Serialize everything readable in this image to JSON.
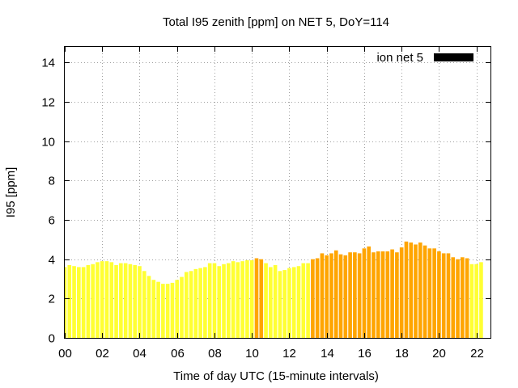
{
  "chart_data": {
    "type": "bar",
    "title": "Total I95 zenith [ppm] on NET 5, DoY=114",
    "xlabel": "Time of day UTC (15-minute intervals)",
    "ylabel": "I95 [ppm]",
    "xlim": [
      0,
      22.75
    ],
    "ylim": [
      0,
      14.8
    ],
    "x_ticks": [
      "00",
      "02",
      "04",
      "06",
      "08",
      "10",
      "12",
      "14",
      "16",
      "18",
      "20",
      "22"
    ],
    "y_ticks": [
      "0",
      "2",
      "4",
      "6",
      "8",
      "10",
      "12",
      "14"
    ],
    "grid": true,
    "legend_position": "top-right",
    "series": [
      {
        "name": "ion net 5",
        "legend_color": "#000000",
        "x_start": 0,
        "x_step": 0.25,
        "values": [
          3.6,
          3.7,
          3.65,
          3.6,
          3.6,
          3.7,
          3.75,
          3.85,
          3.9,
          3.9,
          3.85,
          3.7,
          3.8,
          3.8,
          3.75,
          3.7,
          3.65,
          3.4,
          3.15,
          2.95,
          2.85,
          2.75,
          2.75,
          2.8,
          2.95,
          3.1,
          3.35,
          3.4,
          3.5,
          3.55,
          3.6,
          3.8,
          3.8,
          3.65,
          3.75,
          3.8,
          3.9,
          3.85,
          3.9,
          3.95,
          3.95,
          4.05,
          4.0,
          3.8,
          3.6,
          3.7,
          3.4,
          3.45,
          3.55,
          3.6,
          3.65,
          3.8,
          3.8,
          4.0,
          4.05,
          4.3,
          4.2,
          4.3,
          4.45,
          4.25,
          4.2,
          4.35,
          4.35,
          4.3,
          4.55,
          4.65,
          4.35,
          4.4,
          4.4,
          4.4,
          4.5,
          4.35,
          4.6,
          4.9,
          4.85,
          4.75,
          4.85,
          4.7,
          4.55,
          4.55,
          4.4,
          4.3,
          4.3,
          4.1,
          4.0,
          4.1,
          4.05,
          3.75,
          3.75,
          3.85
        ],
        "colors": [
          "#ffff33",
          "#ffff33",
          "#ffff33",
          "#ffff33",
          "#ffff33",
          "#ffff33",
          "#ffff33",
          "#ffff33",
          "#ffff33",
          "#ffff33",
          "#ffff33",
          "#ffff33",
          "#ffff33",
          "#ffff33",
          "#ffff33",
          "#ffff33",
          "#ffff33",
          "#ffff33",
          "#ffff33",
          "#ffff33",
          "#ffff33",
          "#ffff33",
          "#ffff33",
          "#ffff33",
          "#ffff33",
          "#ffff33",
          "#ffff33",
          "#ffff33",
          "#ffff33",
          "#ffff33",
          "#ffff33",
          "#ffff33",
          "#ffff33",
          "#ffff33",
          "#ffff33",
          "#ffff33",
          "#ffff33",
          "#ffff33",
          "#ffff33",
          "#ffff33",
          "#ffff33",
          "#ffa500",
          "#ffa500",
          "#ffff33",
          "#ffff33",
          "#ffff33",
          "#ffff33",
          "#ffff33",
          "#ffff33",
          "#ffff33",
          "#ffff33",
          "#ffff33",
          "#ffff33",
          "#ffa500",
          "#ffa500",
          "#ffa500",
          "#ffa500",
          "#ffa500",
          "#ffa500",
          "#ffa500",
          "#ffa500",
          "#ffa500",
          "#ffa500",
          "#ffa500",
          "#ffa500",
          "#ffa500",
          "#ffa500",
          "#ffa500",
          "#ffa500",
          "#ffa500",
          "#ffa500",
          "#ffa500",
          "#ffa500",
          "#ffa500",
          "#ffa500",
          "#ffa500",
          "#ffa500",
          "#ffa500",
          "#ffa500",
          "#ffa500",
          "#ffa500",
          "#ffa500",
          "#ffa500",
          "#ffa500",
          "#ffa500",
          "#ffa500",
          "#ffa500",
          "#ffff33",
          "#ffff33",
          "#ffff33"
        ]
      }
    ]
  }
}
